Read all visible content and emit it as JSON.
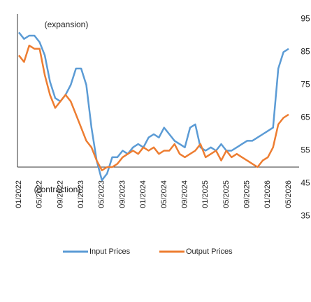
{
  "chart_data": {
    "type": "line",
    "annotations": [
      "(expansion)",
      "(contraction)"
    ],
    "categories": [
      "01/2022",
      null,
      null,
      null,
      "05/2022",
      null,
      null,
      null,
      "09/2022",
      null,
      null,
      null,
      "01/2023",
      null,
      null,
      null,
      "05/2023",
      null,
      null,
      null,
      "09/2023",
      null,
      null,
      null,
      "01/2024",
      null,
      null,
      null,
      "05/2024",
      null,
      null,
      null,
      "09/2024",
      null,
      null,
      null,
      "01/2025",
      null,
      null,
      null,
      "05/2025",
      null,
      null,
      null,
      "09/2025",
      null,
      null,
      null,
      "01/2026",
      null,
      null,
      null,
      "05/2026"
    ],
    "series": [
      {
        "name": "Input Prices",
        "color": "#5b9bd5",
        "values": [
          91,
          89,
          90,
          90,
          88,
          84,
          76,
          71,
          70,
          72,
          75,
          80,
          80,
          75,
          62,
          52,
          46,
          48,
          53,
          53,
          55,
          54,
          56,
          57,
          56,
          59,
          60,
          59,
          62,
          60,
          58,
          57,
          56,
          62,
          63,
          56,
          55,
          56,
          55,
          57,
          55,
          55,
          56,
          57,
          58,
          58,
          59,
          60,
          61,
          62,
          80,
          85,
          86
        ]
      },
      {
        "name": "Output Prices",
        "color": "#ed7d31",
        "values": [
          84,
          82,
          87,
          86,
          86,
          78,
          72,
          68,
          70,
          72,
          70,
          66,
          62,
          58,
          56,
          52,
          49,
          50,
          50,
          51,
          53,
          54,
          55,
          54,
          56,
          55,
          56,
          54,
          55,
          55,
          57,
          54,
          53,
          54,
          55,
          57,
          53,
          54,
          55,
          52,
          55,
          53,
          54,
          53,
          52,
          51,
          50,
          52,
          53,
          56,
          63,
          65,
          66
        ]
      }
    ],
    "ylim": [
      35,
      95
    ],
    "yticks": [
      35,
      45,
      55,
      65,
      75,
      85,
      95
    ],
    "hline": 50,
    "legend": "bottom"
  }
}
